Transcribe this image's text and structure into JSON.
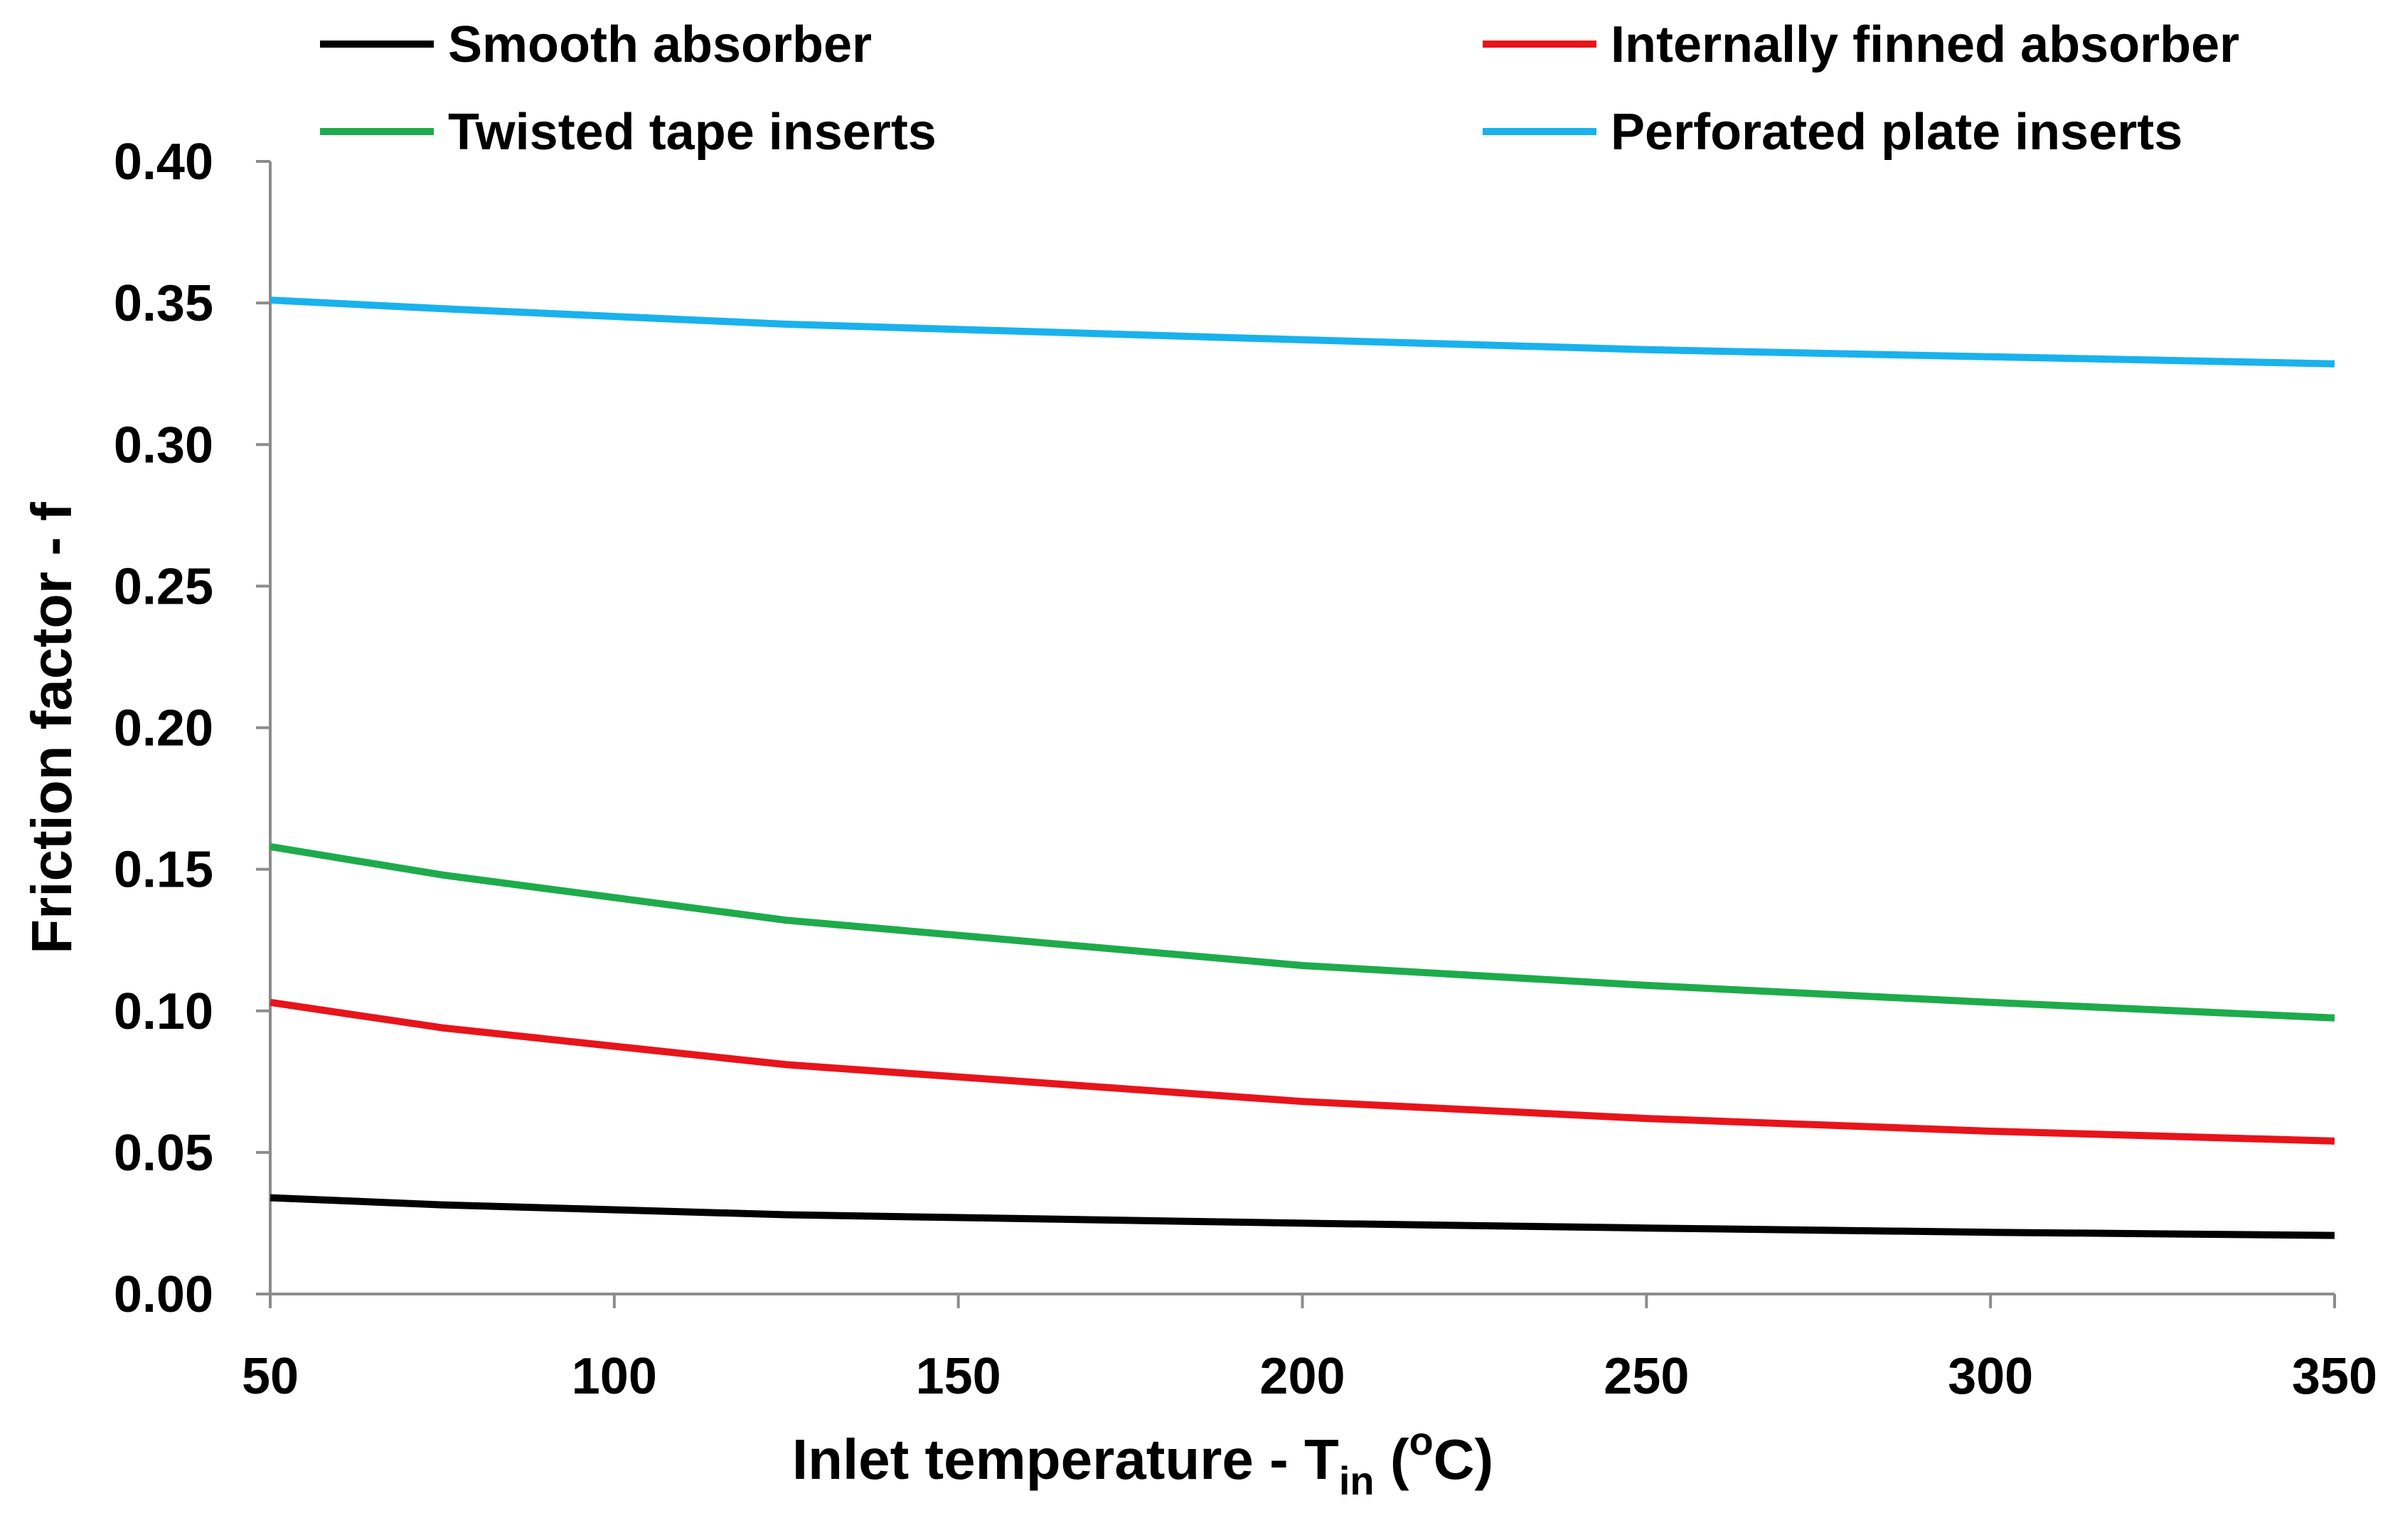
{
  "chart_data": {
    "type": "line",
    "title": "",
    "xlabel": "Inlet temperature - T",
    "xlabel_subscript": "in",
    "xlabel_open": "(",
    "xlabel_superscript": "o",
    "xlabel_unit": "C)",
    "ylabel": "Friction factor - f",
    "xlim": [
      50,
      350
    ],
    "ylim": [
      0,
      0.4
    ],
    "x_ticks": [
      "50",
      "100",
      "150",
      "200",
      "250",
      "300",
      "350"
    ],
    "y_ticks": [
      "0.00",
      "0.05",
      "0.10",
      "0.15",
      "0.20",
      "0.25",
      "0.30",
      "0.35",
      "0.40"
    ],
    "x": [
      50,
      75,
      125,
      200,
      250,
      300,
      350
    ],
    "grid": false,
    "legend_position": "top",
    "series": [
      {
        "name": "Smooth absorber",
        "color": "#000000",
        "values": [
          0.034,
          0.0315,
          0.028,
          0.025,
          0.0233,
          0.0218,
          0.0207
        ]
      },
      {
        "name": "Internally finned absorber",
        "color": "#e8141b",
        "values": [
          0.103,
          0.094,
          0.081,
          0.068,
          0.062,
          0.0575,
          0.054
        ]
      },
      {
        "name": "Twisted tape inserts",
        "color": "#1eab4b",
        "values": [
          0.158,
          0.148,
          0.132,
          0.116,
          0.109,
          0.103,
          0.0975
        ]
      },
      {
        "name": "Perforated plate inserts",
        "color": "#1ab2ec",
        "values": [
          0.351,
          0.348,
          0.3425,
          0.337,
          0.3335,
          0.331,
          0.3285
        ]
      }
    ]
  }
}
